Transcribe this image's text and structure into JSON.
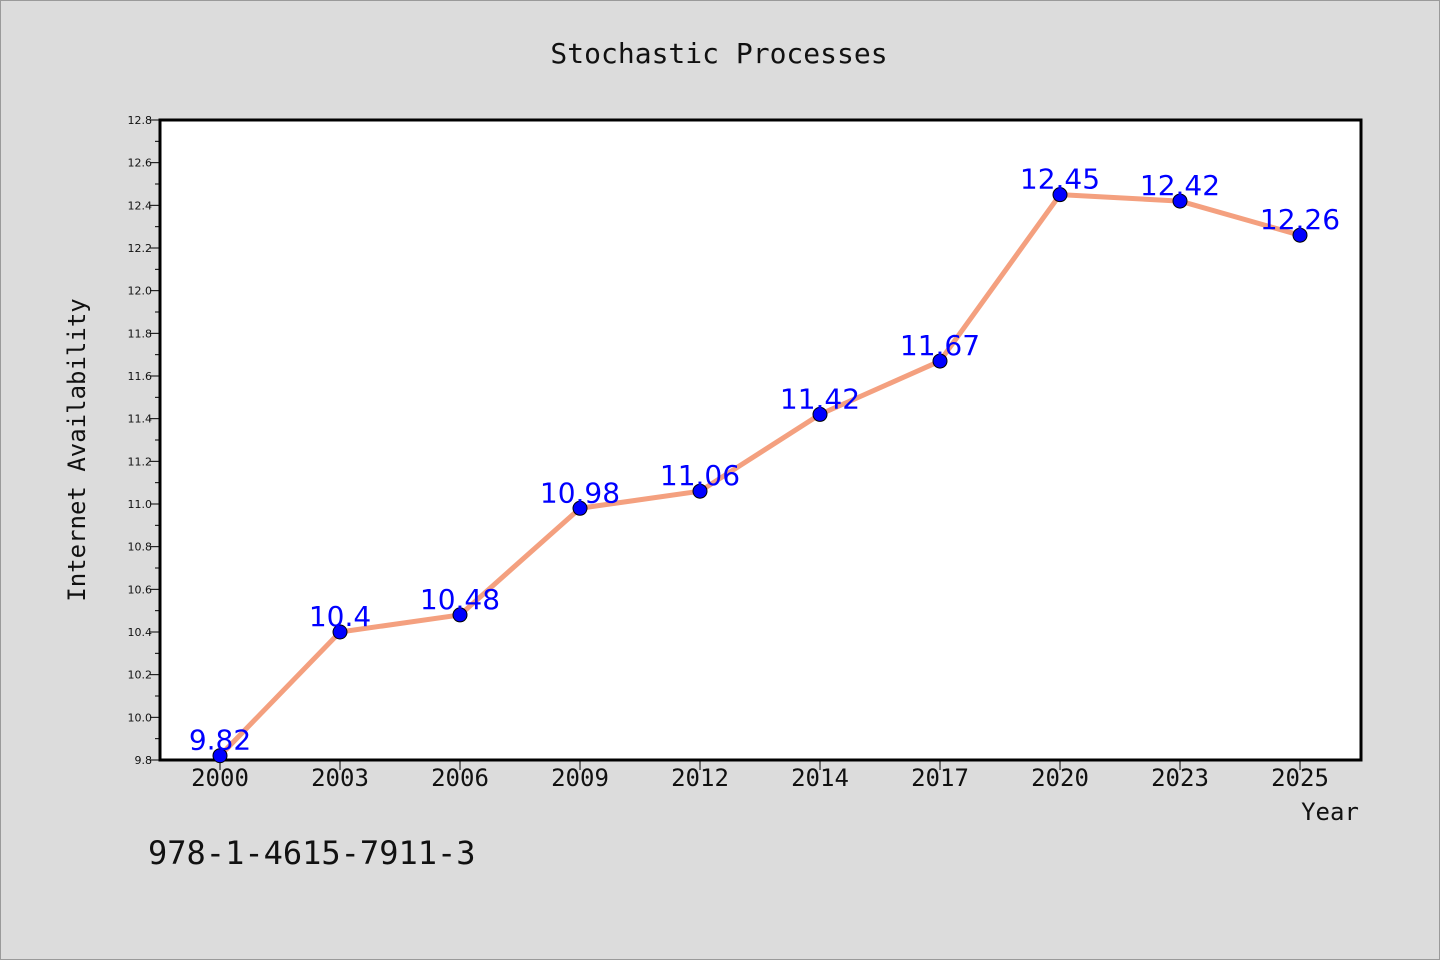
{
  "footnote": "978-1-4615-7911-3",
  "colors": {
    "background": "#dcdcdc",
    "plot_background": "#ffffff",
    "line": "#f4a07f",
    "marker": "#0000ff",
    "data_label": "#0000ff"
  },
  "chart_data": {
    "type": "line",
    "title": "Stochastic Processes",
    "xlabel": "Year",
    "ylabel": "Internet Availability",
    "categories": [
      "2000",
      "2003",
      "2006",
      "2009",
      "2012",
      "2014",
      "2017",
      "2020",
      "2023",
      "2025"
    ],
    "series": [
      {
        "values": [
          9.82,
          10.4,
          10.48,
          10.98,
          11.06,
          11.42,
          11.67,
          12.45,
          12.42,
          12.26
        ]
      }
    ],
    "data_labels": [
      "9.82",
      "10.4",
      "10.48",
      "10.98",
      "11.06",
      "11.42",
      "11.67",
      "12.45",
      "12.42",
      "12.26"
    ],
    "ylim": [
      9.8,
      12.8
    ],
    "yticks": [
      "9.8",
      "10.0",
      "10.2",
      "10.4",
      "10.6",
      "10.8",
      "11.0",
      "11.2",
      "11.4",
      "11.6",
      "11.8",
      "12.0",
      "12.2",
      "12.4",
      "12.6",
      "12.8"
    ],
    "grid": false,
    "legend": "none"
  }
}
